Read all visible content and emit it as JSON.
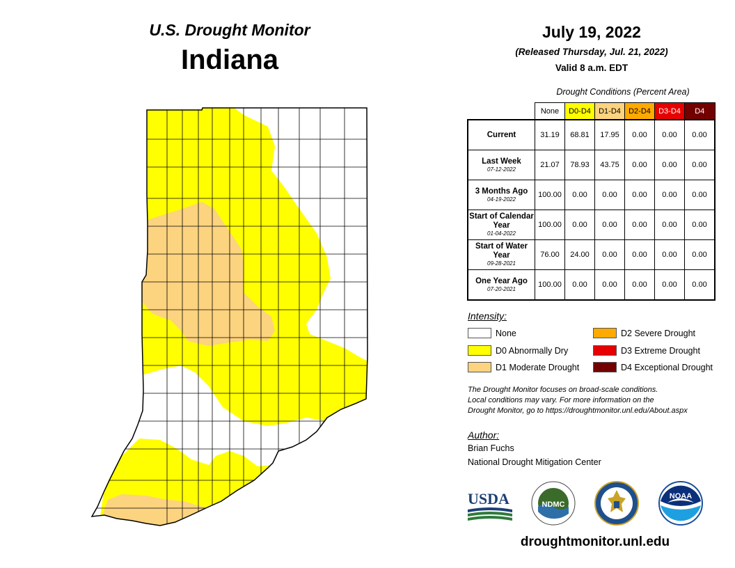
{
  "header": {
    "title": "U.S. Drought Monitor",
    "state": "Indiana"
  },
  "info": {
    "date": "July 19, 2022",
    "released": "(Released Thursday, Jul. 21, 2022)",
    "valid": "Valid 8 a.m. EDT"
  },
  "table": {
    "caption": "Drought Conditions (Percent Area)",
    "columns": [
      {
        "label": "None",
        "color": "#ffffff"
      },
      {
        "label": "D0-D4",
        "color": "#ffff00"
      },
      {
        "label": "D1-D4",
        "color": "#fcd37f"
      },
      {
        "label": "D2-D4",
        "color": "#ffaa00"
      },
      {
        "label": "D3-D4",
        "color": "#e60000"
      },
      {
        "label": "D4",
        "color": "#730000"
      }
    ],
    "rows": [
      {
        "label": "Current",
        "date": "",
        "values": [
          "31.19",
          "68.81",
          "17.95",
          "0.00",
          "0.00",
          "0.00"
        ]
      },
      {
        "label": "Last Week",
        "date": "07-12-2022",
        "values": [
          "21.07",
          "78.93",
          "43.75",
          "0.00",
          "0.00",
          "0.00"
        ]
      },
      {
        "label": "3 Months Ago",
        "date": "04-19-2022",
        "values": [
          "100.00",
          "0.00",
          "0.00",
          "0.00",
          "0.00",
          "0.00"
        ]
      },
      {
        "label": "Start of Calendar Year",
        "date": "01-04-2022",
        "values": [
          "100.00",
          "0.00",
          "0.00",
          "0.00",
          "0.00",
          "0.00"
        ]
      },
      {
        "label": "Start of Water Year",
        "date": "09-28-2021",
        "values": [
          "76.00",
          "24.00",
          "0.00",
          "0.00",
          "0.00",
          "0.00"
        ]
      },
      {
        "label": "One Year Ago",
        "date": "07-20-2021",
        "values": [
          "100.00",
          "0.00",
          "0.00",
          "0.00",
          "0.00",
          "0.00"
        ]
      }
    ]
  },
  "legend": {
    "title": "Intensity:",
    "items": [
      {
        "label": "None",
        "color": "#ffffff"
      },
      {
        "label": "D0 Abnormally Dry",
        "color": "#ffff00"
      },
      {
        "label": "D1 Moderate Drought",
        "color": "#fcd37f"
      },
      {
        "label": "D2 Severe Drought",
        "color": "#ffaa00"
      },
      {
        "label": "D3 Extreme Drought",
        "color": "#e60000"
      },
      {
        "label": "D4 Exceptional Drought",
        "color": "#730000"
      }
    ]
  },
  "note": {
    "line1": "The Drought Monitor focuses on broad-scale conditions.",
    "line2": "Local conditions may vary. For more information on the",
    "line3": "Drought Monitor, go to https://droughtmonitor.unl.edu/About.aspx"
  },
  "author": {
    "title": "Author:",
    "name": "Brian Fuchs",
    "org": "National Drought Mitigation Center"
  },
  "logos": {
    "usda": "USDA",
    "ndmc": "NDMC",
    "noaa": "NOAA"
  },
  "url": "droughtmonitor.unl.edu"
}
